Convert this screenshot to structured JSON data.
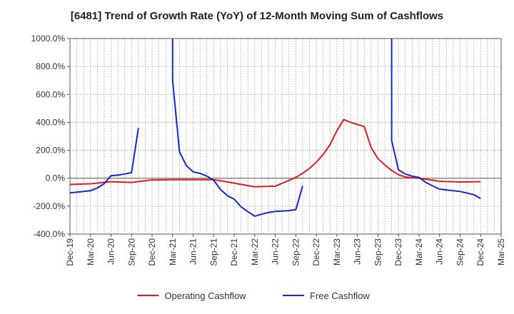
{
  "chart_data": {
    "type": "line",
    "title": "[6481]  Trend of Growth Rate (YoY) of 12-Month Moving Sum of Cashflows",
    "xlabel": "",
    "ylabel": "",
    "ylim": [
      -400,
      1000
    ],
    "y_ticks": [
      "1000.0%",
      "800.0%",
      "600.0%",
      "400.0%",
      "200.0%",
      "0.0%",
      "-200.0%",
      "-400.0%"
    ],
    "x_ticks": [
      "Dec-19",
      "Mar-20",
      "Jun-20",
      "Sep-20",
      "Dec-20",
      "Mar-21",
      "Jun-21",
      "Sep-21",
      "Dec-21",
      "Mar-22",
      "Jun-22",
      "Sep-22",
      "Dec-22",
      "Mar-23",
      "Jun-23",
      "Sep-23",
      "Dec-23",
      "Mar-24",
      "Jun-24",
      "Sep-24",
      "Dec-24",
      "Mar-25"
    ],
    "grid": true,
    "legend_position": "bottom",
    "series": [
      {
        "name": "Operating Cashflow",
        "color": "#e31a1c",
        "points": [
          [
            "2019-12",
            -45
          ],
          [
            "2020-03",
            -40
          ],
          [
            "2020-06",
            -25
          ],
          [
            "2020-09",
            -30
          ],
          [
            "2020-12",
            -12
          ],
          [
            "2021-03",
            -10
          ],
          [
            "2021-06",
            -10
          ],
          [
            "2021-09",
            -10
          ],
          [
            "2021-12",
            -35
          ],
          [
            "2022-03",
            -62
          ],
          [
            "2022-06",
            -57
          ],
          [
            "2022-09",
            5
          ],
          [
            "2022-10",
            35
          ],
          [
            "2022-11",
            70
          ],
          [
            "2022-12",
            115
          ],
          [
            "2023-01",
            170
          ],
          [
            "2023-02",
            240
          ],
          [
            "2023-03",
            340
          ],
          [
            "2023-04",
            420
          ],
          [
            "2023-05",
            400
          ],
          [
            "2023-06",
            385
          ],
          [
            "2023-07",
            370
          ],
          [
            "2023-08",
            220
          ],
          [
            "2023-09",
            140
          ],
          [
            "2023-10",
            95
          ],
          [
            "2023-11",
            55
          ],
          [
            "2023-12",
            25
          ],
          [
            "2024-01",
            8
          ],
          [
            "2024-03",
            0
          ],
          [
            "2024-06",
            -22
          ],
          [
            "2024-09",
            -27
          ],
          [
            "2024-12",
            -25
          ]
        ]
      },
      {
        "name": "Free Cashflow",
        "color": "#1328cf",
        "segments": [
          [
            [
              "2019-12",
              -105
            ],
            [
              "2020-03",
              -90
            ],
            [
              "2020-04",
              -70
            ],
            [
              "2020-05",
              -40
            ],
            [
              "2020-06",
              18
            ],
            [
              "2020-07",
              22
            ],
            [
              "2020-08",
              30
            ],
            [
              "2020-09",
              40
            ],
            [
              "2020-10",
              360
            ]
          ],
          [
            [
              "2021-03",
              1000
            ],
            [
              "2021-03",
              700
            ],
            [
              "2021-04",
              190
            ],
            [
              "2021-05",
              90
            ],
            [
              "2021-06",
              45
            ],
            [
              "2021-07",
              35
            ],
            [
              "2021-08",
              15
            ],
            [
              "2021-09",
              -15
            ],
            [
              "2021-10",
              -80
            ],
            [
              "2021-11",
              -125
            ],
            [
              "2021-12",
              -150
            ],
            [
              "2022-01",
              -205
            ],
            [
              "2022-02",
              -240
            ],
            [
              "2022-03",
              -272
            ],
            [
              "2022-04",
              -258
            ],
            [
              "2022-05",
              -245
            ],
            [
              "2022-06",
              -238
            ],
            [
              "2022-07",
              -235
            ],
            [
              "2022-08",
              -232
            ],
            [
              "2022-09",
              -225
            ],
            [
              "2022-10",
              -55
            ]
          ],
          [
            [
              "2023-11",
              1000
            ],
            [
              "2023-11",
              270
            ],
            [
              "2023-12",
              60
            ],
            [
              "2024-01",
              30
            ],
            [
              "2024-02",
              15
            ],
            [
              "2024-03",
              5
            ],
            [
              "2024-04",
              -30
            ],
            [
              "2024-05",
              -55
            ],
            [
              "2024-06",
              -78
            ],
            [
              "2024-09",
              -95
            ],
            [
              "2024-11",
              -118
            ],
            [
              "2024-12",
              -145
            ]
          ]
        ]
      }
    ]
  }
}
